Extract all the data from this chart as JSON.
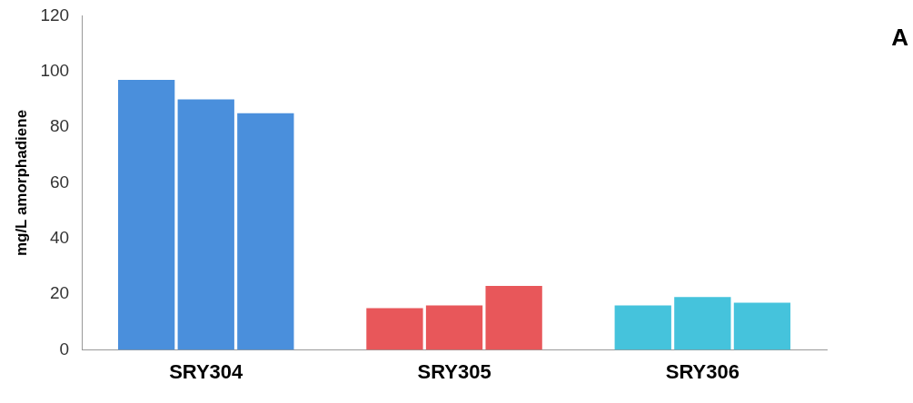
{
  "chart_data": {
    "type": "bar",
    "ylabel": "mg/L amorphadiene",
    "categories": [
      "SRY304",
      "SRY305",
      "SRY306"
    ],
    "series": [
      {
        "colors": [
          "#4a8fdc",
          "#e8575a",
          "#45c3dc"
        ],
        "values": [
          97,
          15,
          16
        ]
      },
      {
        "colors": [
          "#4a8fdc",
          "#e8575a",
          "#45c3dc"
        ],
        "values": [
          90,
          16,
          19
        ]
      },
      {
        "colors": [
          "#4a8fdc",
          "#e8575a",
          "#45c3dc"
        ],
        "values": [
          85,
          23,
          17
        ]
      }
    ],
    "ylim": [
      0,
      120
    ],
    "yticks": [
      0,
      20,
      40,
      60,
      80,
      100,
      120
    ],
    "grid": false,
    "legend": false,
    "annotations": [
      "A"
    ]
  }
}
